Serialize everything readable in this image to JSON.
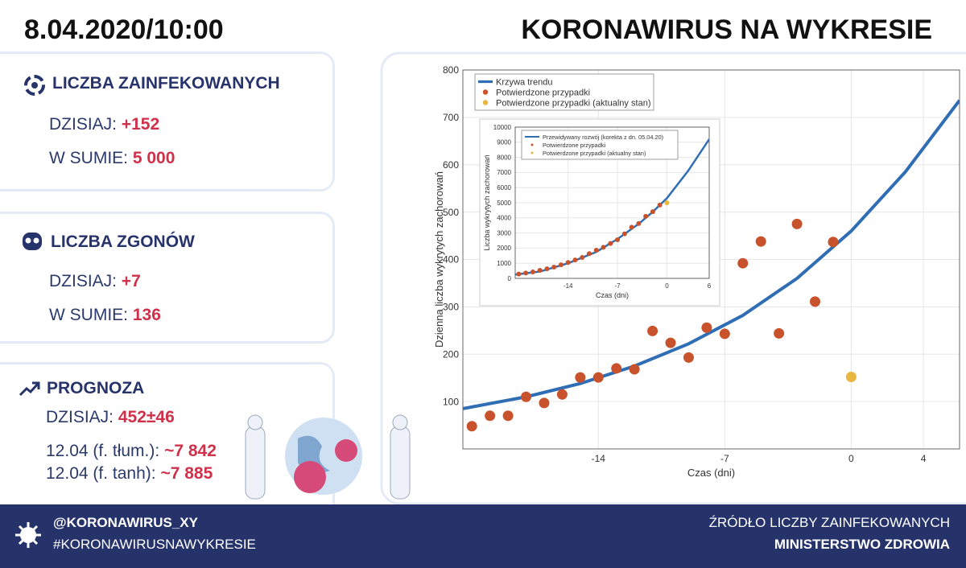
{
  "header": {
    "date": "8.04.2020/10:00",
    "title": "KORONAWIRUS NA WYKRESIE"
  },
  "panels": [
    {
      "title": "LICZBA ZAINFEKOWANYCH",
      "rows": [
        {
          "label": "DZISIAJ:",
          "value": "+152"
        },
        {
          "label": "W SUMIE:",
          "value": "5 000"
        }
      ]
    },
    {
      "title": "LICZBA ZGONÓW",
      "rows": [
        {
          "label": "DZISIAJ:",
          "value": "+7"
        },
        {
          "label": "W SUMIE:",
          "value": "136"
        }
      ]
    },
    {
      "title": "PROGNOZA",
      "rows": [
        {
          "label": "DZISIAJ:",
          "value": "452±46"
        },
        {
          "label": "12.04 (f. tłum.):",
          "value": "~7 842"
        },
        {
          "label": "12.04 (f. tanh):",
          "value": "~7 885"
        }
      ]
    }
  ],
  "footer": {
    "handle": "@KORONAWIRUS_XY",
    "hashtag": "#KORONAWIRUSNAWYKRESIE",
    "source_label": "ŹRÓDŁO LICZBY ZAINFEKOWANYCH",
    "source": "MINISTERSTWO ZDROWIA"
  },
  "chart_data": [
    {
      "type": "scatter",
      "xlabel": "Czas (dni)",
      "ylabel": "Dzienna liczba wykrytych zachorowań",
      "xlim": [
        -21.5,
        6
      ],
      "ylim": [
        0,
        800
      ],
      "xticks": [
        -14,
        -7,
        0,
        4
      ],
      "yticks": [
        100,
        200,
        300,
        400,
        500,
        600,
        700,
        800
      ],
      "grid": true,
      "series": [
        {
          "name": "Krzywa trendu",
          "color": "#2f6db5",
          "style": "line",
          "x": [
            -21.5,
            -18,
            -15,
            -12,
            -9,
            -6,
            -3,
            0,
            3,
            6
          ],
          "values": [
            85,
            110,
            138,
            175,
            222,
            282,
            360,
            460,
            585,
            736
          ]
        },
        {
          "name": "Potwierdzone przypadki",
          "color": "#c8522b",
          "style": "marker",
          "x": [
            -21,
            -20,
            -19,
            -18,
            -17,
            -16,
            -15,
            -14,
            -13,
            -12,
            -11,
            -10,
            -9,
            -8,
            -7,
            -6,
            -5,
            -4,
            -3,
            -2,
            -1
          ],
          "values": [
            48,
            70,
            70,
            110,
            97,
            115,
            151,
            151,
            170,
            168,
            249,
            224,
            193,
            256,
            243,
            392,
            438,
            244,
            475,
            311,
            437
          ]
        },
        {
          "name": "Potwierdzone przypadki (aktualny stan)",
          "color": "#e9b640",
          "style": "marker",
          "x": [
            0
          ],
          "values": [
            152
          ]
        }
      ]
    },
    {
      "type": "scatter",
      "xlabel": "Czas (dni)",
      "ylabel": "Liczba wykrytych zachorowań",
      "xlim": [
        -21.5,
        6
      ],
      "ylim": [
        0,
        10000
      ],
      "xticks": [
        -14,
        -7,
        0,
        6
      ],
      "yticks": [
        0,
        1000,
        2000,
        3000,
        4000,
        5000,
        6000,
        7000,
        8000,
        9000,
        10000
      ],
      "grid": true,
      "series": [
        {
          "name": "Przewidywany rozwój (korekta z dn. 05.04.20)",
          "color": "#2f6db5",
          "style": "line",
          "x": [
            -21.5,
            -18,
            -14,
            -10,
            -7,
            -4,
            -2,
            0,
            3,
            6
          ],
          "values": [
            250,
            450,
            1000,
            1750,
            2600,
            3600,
            4400,
            5300,
            7100,
            9200
          ]
        },
        {
          "name": "Potwierdzone przypadki",
          "color": "#c8522b",
          "style": "marker",
          "x": [
            -21,
            -20,
            -19,
            -18,
            -17,
            -16,
            -15,
            -14,
            -13,
            -12,
            -11,
            -10,
            -9,
            -8,
            -7,
            -6,
            -5,
            -4,
            -3,
            -2,
            -1
          ],
          "values": [
            284,
            354,
            424,
            534,
            631,
            746,
            897,
            1048,
            1218,
            1386,
            1635,
            1859,
            2052,
            2308,
            2551,
            2943,
            3381,
            3625,
            4100,
            4411,
            4848
          ]
        },
        {
          "name": "Potwierdzone przypadki (aktualny stan)",
          "color": "#e9b640",
          "style": "marker",
          "x": [
            0
          ],
          "values": [
            5000
          ]
        }
      ]
    }
  ]
}
